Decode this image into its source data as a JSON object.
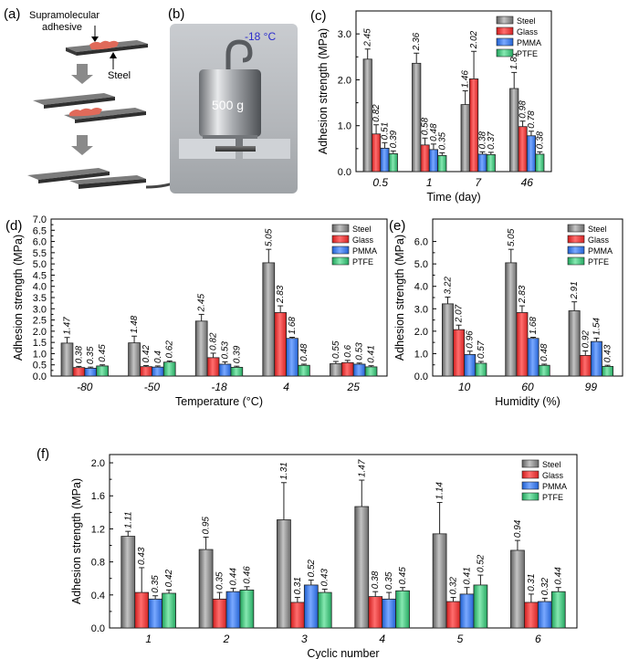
{
  "panels": {
    "a": {
      "letter": "(a)",
      "label_adhesive_1": "Supramolecular",
      "label_adhesive_2": "adhesive",
      "label_steel": "Steel"
    },
    "b": {
      "letter": "(b)",
      "temperature": "-18 °C",
      "weight": "500 g"
    }
  },
  "colors": {
    "Steel": "#8c8c8c",
    "Glass": "#f23a3a",
    "PMMA": "#3d7ef2",
    "PTFE": "#3fc77d"
  },
  "chart_data": [
    {
      "id": "c",
      "letter": "(c)",
      "type": "bar",
      "xlabel": "Time (day)",
      "ylabel": "Adhesion strength (MPa)",
      "ylim": [
        0,
        3.5
      ],
      "yticks": [
        "0.0",
        "1.0",
        "2.0",
        "3.0"
      ],
      "categories": [
        "0.5",
        "1",
        "7",
        "46"
      ],
      "series": [
        {
          "name": "Steel",
          "values": [
            2.45,
            2.36,
            1.46,
            1.81
          ],
          "errors": [
            0.22,
            0.22,
            0.3,
            0.35
          ],
          "labels": [
            "2.45",
            "2.36",
            "1.46",
            "1.81"
          ]
        },
        {
          "name": "Glass",
          "values": [
            0.82,
            0.58,
            2.02,
            0.98
          ],
          "errors": [
            0.2,
            0.15,
            0.6,
            0.12
          ],
          "labels": [
            "0.82",
            "0.58",
            "2.02",
            "0.98"
          ]
        },
        {
          "name": "PMMA",
          "values": [
            0.51,
            0.48,
            0.38,
            0.78
          ],
          "errors": [
            0.12,
            0.12,
            0.05,
            0.1
          ],
          "labels": [
            "0.51",
            "0.48",
            "0.38",
            "0.78"
          ]
        },
        {
          "name": "PTFE",
          "values": [
            0.39,
            0.35,
            0.37,
            0.38
          ],
          "errors": [
            0.06,
            0.06,
            0.05,
            0.05
          ],
          "labels": [
            "0.39",
            "0.35",
            "0.37",
            "0.38"
          ]
        }
      ],
      "legend_position": "top-right",
      "grid": false
    },
    {
      "id": "d",
      "letter": "(d)",
      "type": "bar",
      "xlabel": "Temperature (°C)",
      "ylabel": "Adhesion strength (MPa)",
      "ylim": [
        0,
        7
      ],
      "yticks": [
        "0.0",
        "0.5",
        "1.0",
        "1.5",
        "2.0",
        "2.5",
        "3.0",
        "3.5",
        "4.0",
        "4.5",
        "5.0",
        "5.5",
        "6.0",
        "6.5",
        "7.0"
      ],
      "categories": [
        "-80",
        "-50",
        "-18",
        "4",
        "25"
      ],
      "series": [
        {
          "name": "Steel",
          "values": [
            1.47,
            1.48,
            2.45,
            5.05,
            0.55
          ],
          "errors": [
            0.25,
            0.3,
            0.3,
            0.6,
            0.1
          ],
          "labels": [
            "1.47",
            "1.48",
            "2.45",
            "5.05",
            "0.55"
          ]
        },
        {
          "name": "Glass",
          "values": [
            0.38,
            0.42,
            0.82,
            2.83,
            0.6
          ],
          "errors": [
            0.05,
            0.05,
            0.2,
            0.3,
            0.1
          ],
          "labels": [
            "0.38",
            "0.42",
            "0.82",
            "2.83",
            "0.6"
          ]
        },
        {
          "name": "PMMA",
          "values": [
            0.35,
            0.4,
            0.53,
            1.68,
            0.53
          ],
          "errors": [
            0.05,
            0.05,
            0.1,
            0.05,
            0.05
          ],
          "labels": [
            "0.35",
            "0.4",
            "0.53",
            "1.68",
            "0.53"
          ]
        },
        {
          "name": "PTFE",
          "values": [
            0.45,
            0.62,
            0.39,
            0.48,
            0.41
          ],
          "errors": [
            0.05,
            0.05,
            0.05,
            0.05,
            0.05
          ],
          "labels": [
            "0.45",
            "0.62",
            "0.39",
            "0.48",
            "0.41"
          ]
        }
      ],
      "legend_position": "top-right",
      "grid": false
    },
    {
      "id": "e",
      "letter": "(e)",
      "type": "bar",
      "xlabel": "Humidity (%)",
      "ylabel": "Adhesion strength (MPa)",
      "ylim": [
        0,
        7
      ],
      "yticks": [
        "0.0",
        "1.0",
        "2.0",
        "3.0",
        "4.0",
        "5.0",
        "6.0"
      ],
      "categories": [
        "10",
        "60",
        "99"
      ],
      "series": [
        {
          "name": "Steel",
          "values": [
            3.22,
            5.05,
            2.91
          ],
          "errors": [
            0.3,
            0.6,
            0.4
          ],
          "labels": [
            "3.22",
            "5.05",
            "2.91"
          ]
        },
        {
          "name": "Glass",
          "values": [
            2.07,
            2.83,
            0.92
          ],
          "errors": [
            0.2,
            0.3,
            0.2
          ],
          "labels": [
            "2.07",
            "2.83",
            "0.92"
          ]
        },
        {
          "name": "PMMA",
          "values": [
            0.96,
            1.68,
            1.54
          ],
          "errors": [
            0.15,
            0.05,
            0.15
          ],
          "labels": [
            "0.96",
            "1.68",
            "1.54"
          ]
        },
        {
          "name": "PTFE",
          "values": [
            0.57,
            0.48,
            0.43
          ],
          "errors": [
            0.08,
            0.05,
            0.05
          ],
          "labels": [
            "0.57",
            "0.48",
            "0.43"
          ]
        }
      ],
      "legend_position": "top-right",
      "grid": false
    },
    {
      "id": "f",
      "letter": "(f)",
      "type": "bar",
      "xlabel": "Cyclic number",
      "ylabel": "Adhesion strength (MPa)",
      "ylim": [
        0,
        2.1
      ],
      "yticks": [
        "0.0",
        "0.4",
        "0.8",
        "1.2",
        "1.6",
        "2.0"
      ],
      "categories": [
        "1",
        "2",
        "3",
        "4",
        "5",
        "6"
      ],
      "series": [
        {
          "name": "Steel",
          "values": [
            1.11,
            0.95,
            1.31,
            1.47,
            1.14,
            0.94
          ],
          "errors": [
            0.06,
            0.15,
            0.45,
            0.32,
            0.38,
            0.12
          ],
          "labels": [
            "1.11",
            "0.95",
            "1.31",
            "1.47",
            "1.14",
            "0.94"
          ]
        },
        {
          "name": "Glass",
          "values": [
            0.43,
            0.35,
            0.31,
            0.38,
            0.32,
            0.31
          ],
          "errors": [
            0.3,
            0.08,
            0.06,
            0.06,
            0.05,
            0.1
          ],
          "labels": [
            "0.43",
            "0.35",
            "0.31",
            "0.38",
            "0.32",
            "0.31"
          ]
        },
        {
          "name": "PMMA",
          "values": [
            0.35,
            0.44,
            0.52,
            0.35,
            0.41,
            0.32
          ],
          "errors": [
            0.04,
            0.04,
            0.06,
            0.08,
            0.08,
            0.04
          ],
          "labels": [
            "0.35",
            "0.44",
            "0.52",
            "0.35",
            "0.41",
            "0.32"
          ]
        },
        {
          "name": "PTFE",
          "values": [
            0.42,
            0.46,
            0.43,
            0.45,
            0.52,
            0.44
          ],
          "errors": [
            0.04,
            0.04,
            0.04,
            0.04,
            0.12,
            0.05
          ],
          "labels": [
            "0.42",
            "0.46",
            "0.43",
            "0.45",
            "0.52",
            "0.44"
          ]
        }
      ],
      "legend_position": "top-right",
      "grid": false
    }
  ]
}
